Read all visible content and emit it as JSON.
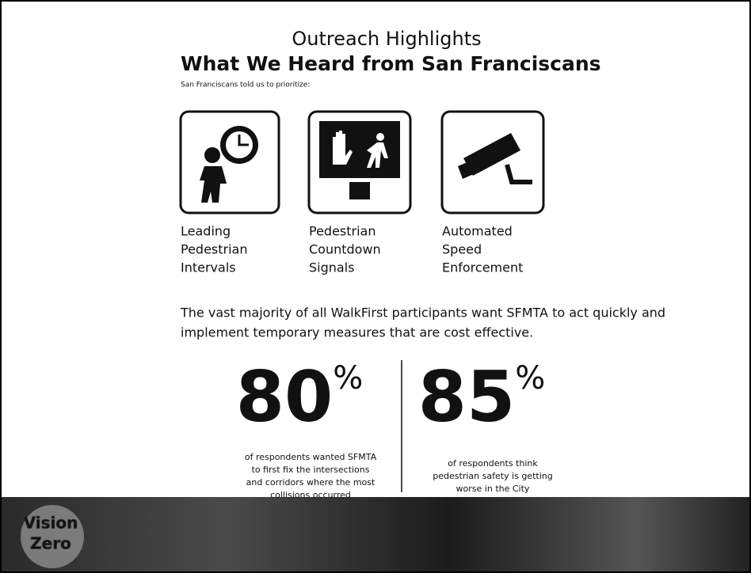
{
  "header": {
    "title": "Outreach Highlights",
    "subtitle": "What We Heard from San Franciscans",
    "intro": "San Franciscans told us to prioritize:"
  },
  "priorities": [
    {
      "lines": [
        "Leading",
        "Pedestrian",
        "Intervals"
      ]
    },
    {
      "lines": [
        "Pedestrian",
        "Countdown",
        "Signals"
      ]
    },
    {
      "lines": [
        "Automated",
        "Speed",
        "Enforcement"
      ]
    }
  ],
  "statement": [
    "The vast majority of all WalkFirst participants want SFMTA to act quickly and",
    "implement temporary measures that are cost effective."
  ],
  "stats": [
    {
      "number": "80",
      "unit": "%",
      "caption": [
        "of respondents wanted SFMTA",
        "to first fix the intersections",
        "and corridors where the most",
        "collisions occurred"
      ]
    },
    {
      "number": "85",
      "unit": "%",
      "caption": [
        "of respondents think",
        "pedestrian safety is getting",
        "worse in the City"
      ]
    }
  ],
  "footer": {
    "logo": [
      "Vision",
      "Zero"
    ]
  }
}
